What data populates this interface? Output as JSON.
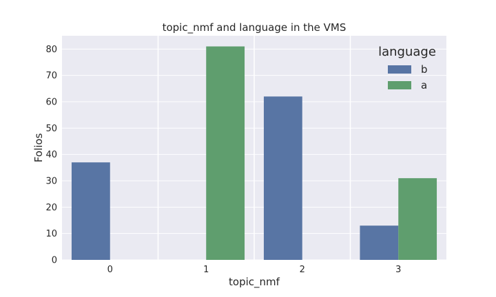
{
  "chart_data": {
    "type": "bar",
    "title": "topic_nmf and language in the VMS",
    "xlabel": "topic_nmf",
    "ylabel": "Folios",
    "categories": [
      "0",
      "1",
      "2",
      "3"
    ],
    "series": [
      {
        "name": "b",
        "values": [
          37,
          0,
          62,
          13
        ],
        "color": "#5875a4"
      },
      {
        "name": "a",
        "values": [
          0,
          81,
          0,
          31
        ],
        "color": "#5f9e6e"
      }
    ],
    "ylim": [
      0,
      85.05
    ],
    "yticks": [
      "0",
      "10",
      "20",
      "30",
      "40",
      "50",
      "60",
      "70",
      "80"
    ],
    "grid": true,
    "background": "#eaeaf2",
    "legend": {
      "title": "language",
      "position": "top-right"
    }
  }
}
